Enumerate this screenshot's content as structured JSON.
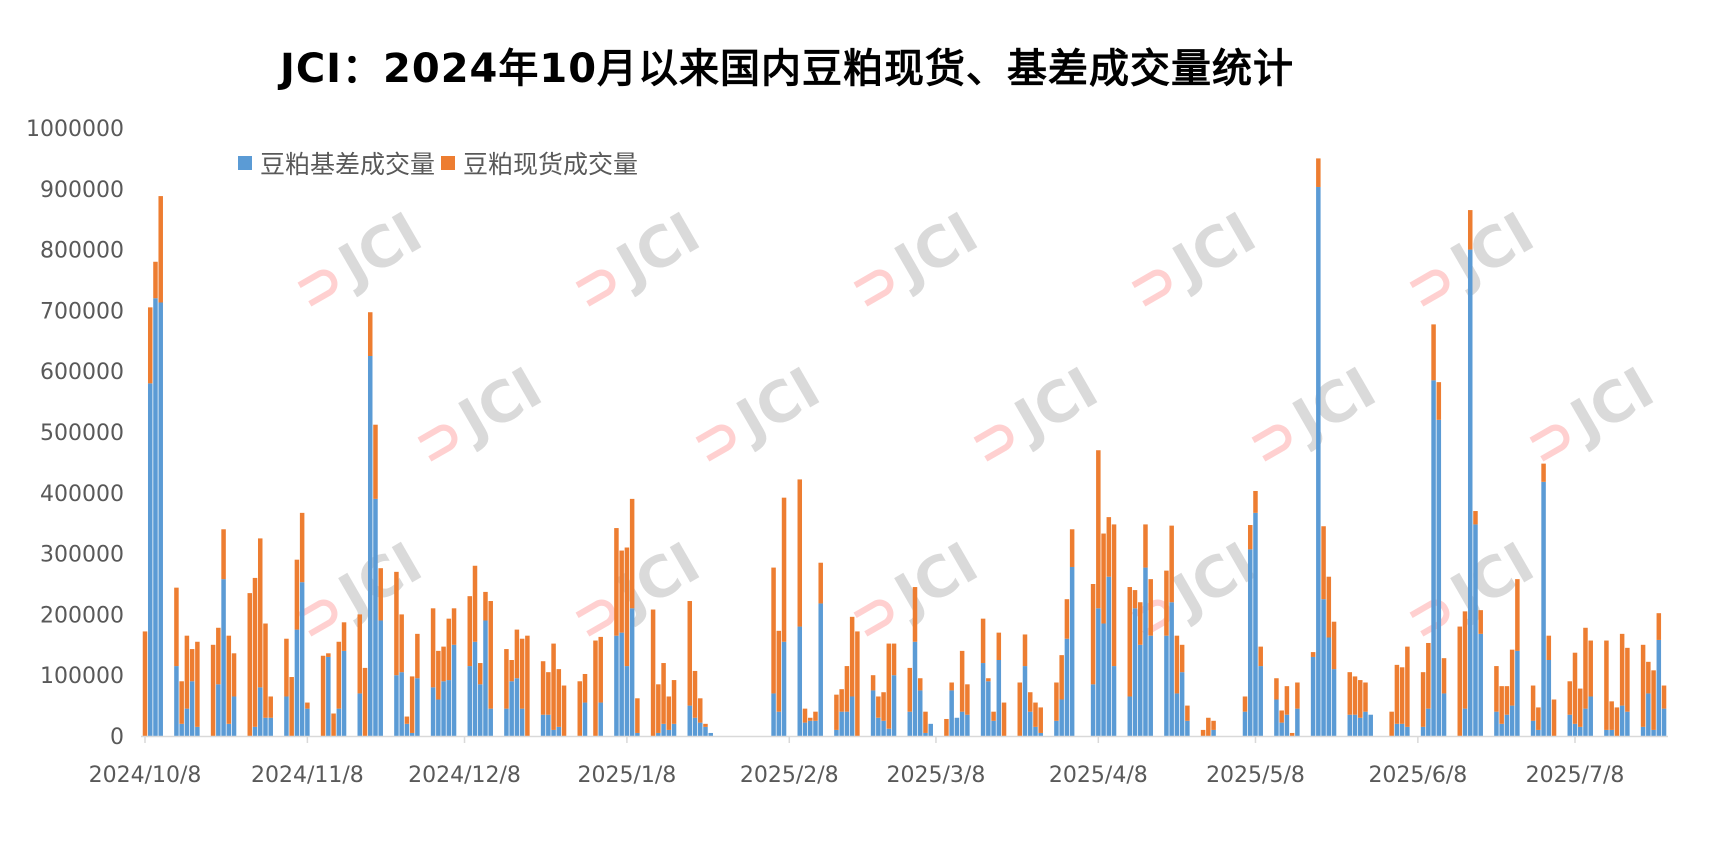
{
  "chart_data": {
    "type": "bar",
    "stacked": true,
    "title": "JCI：2024年10月以来国内豆粕现货、基差成交量统计",
    "xlabel": "",
    "ylabel": "",
    "ylim": [
      0,
      1000000
    ],
    "yticks": [
      "0",
      "100000",
      "200000",
      "300000",
      "400000",
      "500000",
      "600000",
      "700000",
      "800000",
      "900000",
      "1000000"
    ],
    "xtick_labels": [
      "2024/10/8",
      "2024/11/8",
      "2024/12/8",
      "2025/1/8",
      "2025/2/8",
      "2025/3/8",
      "2025/4/8",
      "2025/5/8",
      "2025/6/8",
      "2025/7/8"
    ],
    "grid": false,
    "legend_position": "top-left",
    "watermark": "JCI",
    "colors": {
      "basis": "#5b9bd5",
      "spot": "#ed7d31",
      "axis": "#d9d9d9",
      "tick_text": "#595959"
    },
    "x": [
      "2024-10-08",
      "2024-10-09",
      "2024-10-10",
      "2024-10-11",
      "2024-10-14",
      "2024-10-15",
      "2024-10-16",
      "2024-10-17",
      "2024-10-18",
      "2024-10-21",
      "2024-10-22",
      "2024-10-23",
      "2024-10-24",
      "2024-10-25",
      "2024-10-28",
      "2024-10-29",
      "2024-10-30",
      "2024-10-31",
      "2024-11-01",
      "2024-11-04",
      "2024-11-05",
      "2024-11-06",
      "2024-11-07",
      "2024-11-08",
      "2024-11-11",
      "2024-11-12",
      "2024-11-13",
      "2024-11-14",
      "2024-11-15",
      "2024-11-18",
      "2024-11-19",
      "2024-11-20",
      "2024-11-21",
      "2024-11-22",
      "2024-11-25",
      "2024-11-26",
      "2024-11-27",
      "2024-11-28",
      "2024-11-29",
      "2024-12-02",
      "2024-12-03",
      "2024-12-04",
      "2024-12-05",
      "2024-12-06",
      "2024-12-09",
      "2024-12-10",
      "2024-12-11",
      "2024-12-12",
      "2024-12-13",
      "2024-12-16",
      "2024-12-17",
      "2024-12-18",
      "2024-12-19",
      "2024-12-20",
      "2024-12-23",
      "2024-12-24",
      "2024-12-25",
      "2024-12-26",
      "2024-12-27",
      "2024-12-30",
      "2024-12-31",
      "2025-01-02",
      "2025-01-03",
      "2025-01-06",
      "2025-01-07",
      "2025-01-08",
      "2025-01-09",
      "2025-01-10",
      "2025-01-13",
      "2025-01-14",
      "2025-01-15",
      "2025-01-16",
      "2025-01-17",
      "2025-01-20",
      "2025-01-21",
      "2025-01-22",
      "2025-01-23",
      "2025-01-24",
      "2025-02-05",
      "2025-02-06",
      "2025-02-07",
      "2025-02-10",
      "2025-02-11",
      "2025-02-12",
      "2025-02-13",
      "2025-02-14",
      "2025-02-17",
      "2025-02-18",
      "2025-02-19",
      "2025-02-20",
      "2025-02-21",
      "2025-02-24",
      "2025-02-25",
      "2025-02-26",
      "2025-02-27",
      "2025-02-28",
      "2025-03-03",
      "2025-03-04",
      "2025-03-05",
      "2025-03-06",
      "2025-03-07",
      "2025-03-10",
      "2025-03-11",
      "2025-03-12",
      "2025-03-13",
      "2025-03-14",
      "2025-03-17",
      "2025-03-18",
      "2025-03-19",
      "2025-03-20",
      "2025-03-21",
      "2025-03-24",
      "2025-03-25",
      "2025-03-26",
      "2025-03-27",
      "2025-03-28",
      "2025-03-31",
      "2025-04-01",
      "2025-04-02",
      "2025-04-03",
      "2025-04-07",
      "2025-04-08",
      "2025-04-09",
      "2025-04-10",
      "2025-04-11",
      "2025-04-14",
      "2025-04-15",
      "2025-04-16",
      "2025-04-17",
      "2025-04-18",
      "2025-04-21",
      "2025-04-22",
      "2025-04-23",
      "2025-04-24",
      "2025-04-25",
      "2025-04-28",
      "2025-04-29",
      "2025-04-30",
      "2025-05-06",
      "2025-05-07",
      "2025-05-08",
      "2025-05-09",
      "2025-05-12",
      "2025-05-13",
      "2025-05-14",
      "2025-05-15",
      "2025-05-16",
      "2025-05-19",
      "2025-05-20",
      "2025-05-21",
      "2025-05-22",
      "2025-05-23",
      "2025-05-26",
      "2025-05-27",
      "2025-05-28",
      "2025-05-29",
      "2025-05-30",
      "2025-06-03",
      "2025-06-04",
      "2025-06-05",
      "2025-06-06",
      "2025-06-09",
      "2025-06-10",
      "2025-06-11",
      "2025-06-12",
      "2025-06-13",
      "2025-06-16",
      "2025-06-17",
      "2025-06-18",
      "2025-06-19",
      "2025-06-20",
      "2025-06-23",
      "2025-06-24",
      "2025-06-25",
      "2025-06-26",
      "2025-06-27",
      "2025-06-30",
      "2025-07-01",
      "2025-07-02",
      "2025-07-03",
      "2025-07-04",
      "2025-07-07",
      "2025-07-08",
      "2025-07-09",
      "2025-07-10",
      "2025-07-11",
      "2025-07-14",
      "2025-07-15",
      "2025-07-16",
      "2025-07-17",
      "2025-07-18",
      "2025-07-21",
      "2025-07-22",
      "2025-07-23",
      "2025-07-24",
      "2025-07-25"
    ],
    "series": [
      {
        "name": "豆粕基差成交量",
        "values": [
          0,
          580000,
          720000,
          713000,
          115000,
          20000,
          45000,
          90000,
          15000,
          0,
          85000,
          258000,
          20000,
          65000,
          0,
          15000,
          80000,
          30000,
          30000,
          65000,
          0,
          175000,
          253000,
          45000,
          0,
          130000,
          0,
          45000,
          140000,
          70000,
          0,
          625000,
          390000,
          190000,
          100000,
          105000,
          20000,
          5000,
          95000,
          80000,
          60000,
          90000,
          92000,
          150000,
          115000,
          155000,
          85000,
          190000,
          45000,
          45000,
          90000,
          95000,
          45000,
          0,
          35000,
          35000,
          10000,
          15000,
          0,
          0,
          55000,
          0,
          55000,
          165000,
          170000,
          115000,
          210000,
          5000,
          0,
          5000,
          20000,
          10000,
          20000,
          50000,
          30000,
          22000,
          15000,
          5000,
          70000,
          40000,
          155000,
          180000,
          22000,
          25000,
          25000,
          218000,
          10000,
          40000,
          40000,
          65000,
          0,
          75000,
          30000,
          25000,
          12000,
          100000,
          40000,
          155000,
          75000,
          5000,
          20000,
          0,
          75000,
          30000,
          40000,
          35000,
          120000,
          90000,
          25000,
          125000,
          0,
          0,
          115000,
          40000,
          15000,
          5000,
          25000,
          60000,
          160000,
          278000,
          85000,
          210000,
          185000,
          262000,
          115000,
          65000,
          210000,
          150000,
          277000,
          165000,
          165000,
          220000,
          70000,
          105000,
          25000,
          0,
          0,
          10000,
          40000,
          307000,
          367000,
          115000,
          60000,
          22000,
          35000,
          0,
          45000,
          130000,
          903000,
          225000,
          162000,
          110000,
          35000,
          35000,
          30000,
          40000,
          35000,
          0,
          20000,
          20000,
          15000,
          15000,
          45000,
          585000,
          520000,
          70000,
          0,
          45000,
          800000,
          348000,
          168000,
          40000,
          20000,
          35000,
          50000,
          140000,
          25000,
          10000,
          418000,
          125000,
          0,
          35000,
          20000,
          15000,
          45000,
          65000,
          10000,
          10000,
          0,
          50000,
          40000,
          15000,
          70000,
          10000,
          158000,
          45000
        ]
      },
      {
        "name": "豆粕现货成交量",
        "values": [
          172000,
          125000,
          60000,
          175000,
          129000,
          70000,
          120000,
          53000,
          140000,
          150000,
          93000,
          82000,
          145000,
          71000,
          235000,
          245000,
          245000,
          155000,
          35000,
          95000,
          97000,
          115000,
          114000,
          10000,
          132000,
          6000,
          37000,
          110000,
          47000,
          130000,
          112000,
          72000,
          122000,
          86000,
          170000,
          95000,
          12000,
          93000,
          73000,
          130000,
          80000,
          57000,
          101000,
          60000,
          115000,
          125000,
          35000,
          47000,
          177000,
          98000,
          35000,
          80000,
          115000,
          165000,
          88000,
          70000,
          142000,
          95000,
          83000,
          90000,
          47000,
          157000,
          108000,
          177000,
          135000,
          195000,
          180000,
          57000,
          208000,
          80000,
          100000,
          55000,
          72000,
          172000,
          77000,
          40000,
          5000,
          0,
          207000,
          133000,
          237000,
          242000,
          23000,
          5000,
          15000,
          67000,
          58000,
          37000,
          75000,
          131000,
          172000,
          25000,
          35000,
          47000,
          140000,
          52000,
          72000,
          90000,
          20000,
          35000,
          0,
          28000,
          13000,
          0,
          100000,
          50000,
          73000,
          5000,
          15000,
          45000,
          55000,
          88000,
          52000,
          32000,
          40000,
          42000,
          63000,
          73000,
          65000,
          62000,
          165000,
          260000,
          148000,
          98000,
          233000,
          180000,
          30000,
          70000,
          71000,
          93000,
          107000,
          126000,
          95000,
          45000,
          25000,
          10000,
          30000,
          15000,
          25000,
          40000,
          36000,
          32000,
          35000,
          20000,
          47000,
          5000,
          43000,
          8000,
          47000,
          120000,
          100000,
          78000,
          70000,
          63000,
          62000,
          48000,
          0,
          40000,
          97000,
          93000,
          132000,
          90000,
          108000,
          92000,
          62000,
          58000,
          180000,
          160000,
          65000,
          22000,
          39000,
          75000,
          62000,
          47000,
          92000,
          118000,
          58000,
          37000,
          30000,
          40000,
          60000,
          55000,
          117000,
          63000,
          133000,
          92000,
          147000,
          47000,
          47000,
          118000,
          105000,
          135000,
          52000,
          98000,
          44000,
          38000
        ]
      }
    ]
  }
}
